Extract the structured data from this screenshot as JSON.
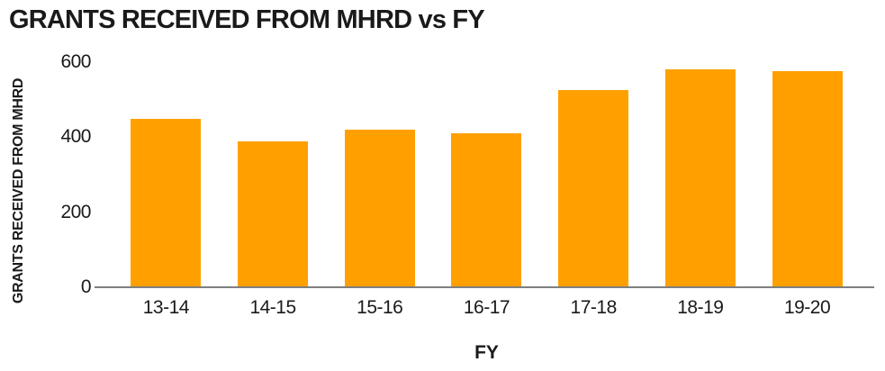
{
  "chart_data": {
    "type": "bar",
    "title": "GRANTS RECEIVED FROM MHRD vs FY",
    "xlabel": "FY",
    "ylabel": "GRANTS RECEIVED FROM MHRD",
    "categories": [
      "13-14",
      "14-15",
      "15-16",
      "16-17",
      "17-18",
      "18-19",
      "19-20"
    ],
    "values": [
      450,
      390,
      420,
      410,
      525,
      580,
      575
    ],
    "ylim": [
      0,
      600
    ],
    "yticks": [
      0,
      200,
      400,
      600
    ],
    "grid": false,
    "legend": false,
    "colors": {
      "bar": "#FFA000",
      "axis_line": "#7F7F7F",
      "text": "#1A1A1A"
    }
  }
}
